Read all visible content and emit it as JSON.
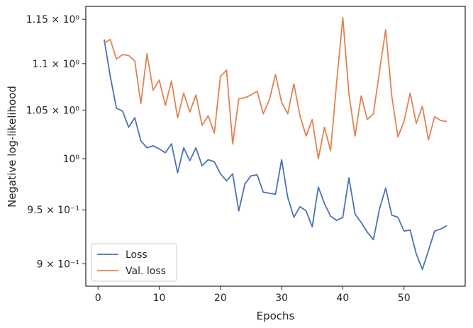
{
  "chart_data": {
    "type": "line",
    "xlabel": "Epochs",
    "ylabel": "Negative log-likelihood",
    "x_scale": "linear",
    "y_scale": "log",
    "xlim": [
      -2,
      60
    ],
    "ylim": [
      0.88,
      1.165
    ],
    "xticks": [
      0,
      10,
      20,
      30,
      40,
      50
    ],
    "xtick_labels": [
      "0",
      "10",
      "20",
      "30",
      "40",
      "50"
    ],
    "yticks": [
      0.9,
      0.95,
      1.0,
      1.05,
      1.1,
      1.15
    ],
    "ytick_labels": [
      "9 × 10⁻¹",
      "9.5 × 10⁻¹",
      "10⁰",
      "1.05 × 10⁰",
      "1.1 × 10⁰",
      "1.15 × 10⁰"
    ],
    "grid": false,
    "legend_position": "lower-left",
    "series": [
      {
        "name": "Loss",
        "color": "#4c72b0",
        "x": [
          1,
          2,
          3,
          4,
          5,
          6,
          7,
          8,
          9,
          10,
          11,
          12,
          13,
          14,
          15,
          16,
          17,
          18,
          19,
          20,
          21,
          22,
          23,
          24,
          25,
          26,
          27,
          28,
          29,
          30,
          31,
          32,
          33,
          34,
          35,
          36,
          37,
          38,
          39,
          40,
          41,
          42,
          43,
          44,
          45,
          46,
          47,
          48,
          49,
          50,
          51,
          52,
          53,
          54,
          55,
          56,
          57
        ],
        "values": [
          1.127,
          1.086,
          1.052,
          1.049,
          1.032,
          1.042,
          1.018,
          1.011,
          1.013,
          1.01,
          1.006,
          1.015,
          0.986,
          1.011,
          0.998,
          1.011,
          0.993,
          0.999,
          0.997,
          0.985,
          0.978,
          0.985,
          0.949,
          0.975,
          0.983,
          0.984,
          0.967,
          0.966,
          0.965,
          0.999,
          0.962,
          0.943,
          0.953,
          0.949,
          0.934,
          0.972,
          0.956,
          0.944,
          0.94,
          0.943,
          0.981,
          0.946,
          0.938,
          0.929,
          0.922,
          0.951,
          0.971,
          0.945,
          0.943,
          0.93,
          0.931,
          0.909,
          0.895,
          0.912,
          0.93,
          0.932,
          0.935
        ]
      },
      {
        "name": "Val. loss",
        "color": "#dd8452",
        "x": [
          1,
          2,
          3,
          4,
          5,
          6,
          7,
          8,
          9,
          10,
          11,
          12,
          13,
          14,
          15,
          16,
          17,
          18,
          19,
          20,
          21,
          22,
          23,
          24,
          25,
          26,
          27,
          28,
          29,
          30,
          31,
          32,
          33,
          34,
          35,
          36,
          37,
          38,
          39,
          40,
          41,
          42,
          43,
          44,
          45,
          46,
          47,
          48,
          49,
          50,
          51,
          52,
          53,
          54,
          55,
          56,
          57
        ],
        "values": [
          1.123,
          1.127,
          1.105,
          1.11,
          1.109,
          1.103,
          1.057,
          1.111,
          1.071,
          1.082,
          1.055,
          1.081,
          1.042,
          1.068,
          1.048,
          1.066,
          1.034,
          1.044,
          1.026,
          1.086,
          1.093,
          1.015,
          1.062,
          1.063,
          1.066,
          1.07,
          1.046,
          1.061,
          1.088,
          1.058,
          1.046,
          1.078,
          1.044,
          1.023,
          1.04,
          1.0,
          1.032,
          1.008,
          1.08,
          1.152,
          1.067,
          1.023,
          1.065,
          1.04,
          1.046,
          1.092,
          1.138,
          1.065,
          1.022,
          1.038,
          1.068,
          1.036,
          1.054,
          1.019,
          1.043,
          1.039,
          1.038
        ]
      }
    ]
  }
}
